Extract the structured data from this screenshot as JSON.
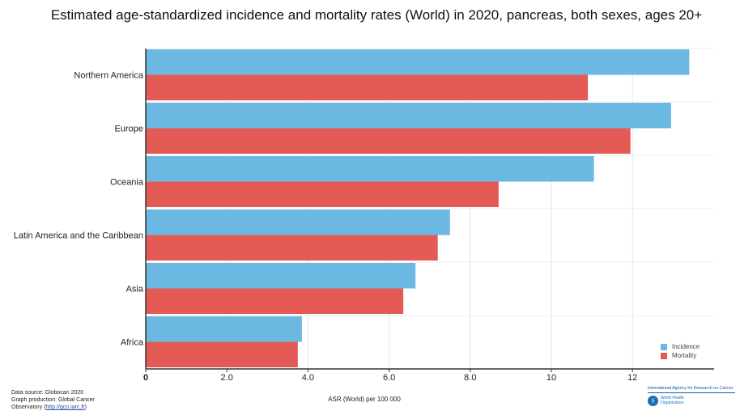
{
  "chart_data": {
    "type": "bar",
    "orientation": "horizontal",
    "title": "Estimated age-standardized incidence and mortality rates (World) in 2020, pancreas, both sexes, ages 20+",
    "xlabel": "ASR (World) per 100 000",
    "ylabel": "",
    "xlim": [
      0,
      13.6
    ],
    "xticks": [
      "0",
      "2.0",
      "4.0",
      "6.0",
      "8.0",
      "10",
      "12"
    ],
    "grid": true,
    "legend_position": "bottom-right",
    "categories": [
      "Northern America",
      "Europe",
      "Oceania",
      "Latin America and the Caribbean",
      "Asia",
      "Africa"
    ],
    "series": [
      {
        "name": "Incidence",
        "color": "#6bb8e3",
        "values": [
          13.4,
          12.95,
          11.05,
          7.5,
          6.65,
          3.85
        ]
      },
      {
        "name": "Mortality",
        "color": "#e45b56",
        "values": [
          10.9,
          11.95,
          8.7,
          7.2,
          6.35,
          3.75
        ]
      }
    ]
  },
  "footer": {
    "source_line": "Data source: Globocan 2020",
    "production_line": "Graph production: Global Cancer",
    "observatory_prefix": "Observatory (",
    "observatory_link": "http://gco.iarc.fr",
    "observatory_suffix": ")"
  },
  "logos": {
    "iarc_text": "International Agency for Research on Cancer",
    "who_line1": "World Health",
    "who_line2": "Organization"
  }
}
